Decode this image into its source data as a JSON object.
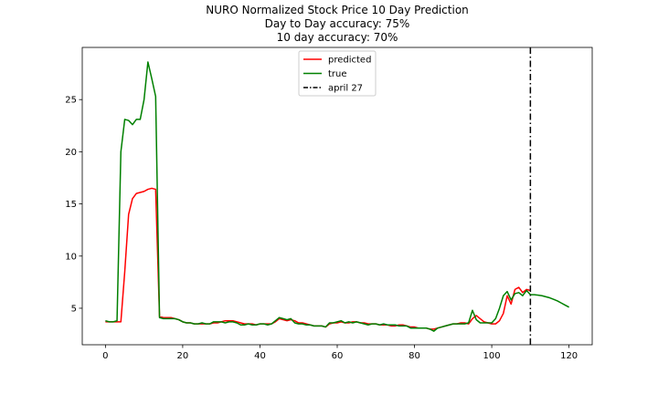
{
  "chart_data": {
    "type": "line",
    "title": "NURO Normalized Stock Price 10 Day Prediction",
    "subtitle": [
      "Day to Day accuracy: 75%",
      "10 day accuracy: 70%"
    ],
    "xlabel": "",
    "ylabel": "",
    "xlim": [
      -6,
      126
    ],
    "ylim": [
      1.5,
      30.0
    ],
    "xticks": [
      0,
      20,
      40,
      60,
      80,
      100,
      120
    ],
    "yticks": [
      5,
      10,
      15,
      20,
      25
    ],
    "grid": false,
    "legend": {
      "placement": "top-center"
    },
    "vline": {
      "x": 110,
      "label": "april 27",
      "color": "#000000",
      "style": "dash-dot"
    },
    "series": [
      {
        "name": "predicted",
        "color": "#ff0000",
        "x": [
          0,
          1,
          2,
          3,
          4,
          5,
          6,
          7,
          8,
          9,
          10,
          11,
          12,
          13,
          14,
          15,
          16,
          17,
          18,
          19,
          20,
          21,
          22,
          23,
          24,
          25,
          26,
          27,
          28,
          29,
          30,
          31,
          32,
          33,
          34,
          35,
          36,
          37,
          38,
          39,
          40,
          41,
          42,
          43,
          44,
          45,
          46,
          47,
          48,
          49,
          50,
          51,
          52,
          53,
          54,
          55,
          56,
          57,
          58,
          59,
          60,
          61,
          62,
          63,
          64,
          65,
          66,
          67,
          68,
          69,
          70,
          71,
          72,
          73,
          74,
          75,
          76,
          77,
          78,
          79,
          80,
          81,
          82,
          83,
          84,
          85,
          86,
          87,
          88,
          89,
          90,
          91,
          92,
          93,
          94,
          95,
          96,
          97,
          98,
          99,
          100,
          101,
          102,
          103,
          104,
          105,
          106,
          107,
          108,
          109,
          110
        ],
        "values": [
          3.7,
          3.7,
          3.7,
          3.7,
          3.7,
          8.5,
          14.0,
          15.5,
          16.0,
          16.1,
          16.2,
          16.4,
          16.5,
          16.4,
          4.2,
          4.1,
          4.1,
          4.1,
          4.0,
          3.9,
          3.7,
          3.6,
          3.6,
          3.5,
          3.5,
          3.5,
          3.5,
          3.5,
          3.6,
          3.6,
          3.7,
          3.8,
          3.8,
          3.8,
          3.7,
          3.6,
          3.5,
          3.5,
          3.5,
          3.4,
          3.5,
          3.5,
          3.5,
          3.5,
          3.7,
          4.0,
          3.9,
          3.8,
          3.9,
          3.8,
          3.6,
          3.6,
          3.5,
          3.4,
          3.3,
          3.3,
          3.3,
          3.2,
          3.5,
          3.6,
          3.6,
          3.7,
          3.6,
          3.6,
          3.7,
          3.7,
          3.6,
          3.6,
          3.5,
          3.5,
          3.5,
          3.4,
          3.4,
          3.4,
          3.3,
          3.3,
          3.4,
          3.4,
          3.3,
          3.2,
          3.2,
          3.1,
          3.1,
          3.1,
          3.0,
          3.0,
          3.1,
          3.2,
          3.3,
          3.4,
          3.5,
          3.5,
          3.6,
          3.6,
          3.5,
          4.0,
          4.3,
          4.0,
          3.7,
          3.6,
          3.5,
          3.5,
          3.8,
          4.5,
          6.2,
          5.4,
          6.8,
          7.0,
          6.5,
          6.8,
          6.7
        ]
      },
      {
        "name": "true",
        "color": "#008000",
        "x": [
          0,
          1,
          2,
          3,
          4,
          5,
          6,
          7,
          8,
          9,
          10,
          11,
          12,
          13,
          14,
          15,
          16,
          17,
          18,
          19,
          20,
          21,
          22,
          23,
          24,
          25,
          26,
          27,
          28,
          29,
          30,
          31,
          32,
          33,
          34,
          35,
          36,
          37,
          38,
          39,
          40,
          41,
          42,
          43,
          44,
          45,
          46,
          47,
          48,
          49,
          50,
          51,
          52,
          53,
          54,
          55,
          56,
          57,
          58,
          59,
          60,
          61,
          62,
          63,
          64,
          65,
          66,
          67,
          68,
          69,
          70,
          71,
          72,
          73,
          74,
          75,
          76,
          77,
          78,
          79,
          80,
          81,
          82,
          83,
          84,
          85,
          86,
          87,
          88,
          89,
          90,
          91,
          92,
          93,
          94,
          95,
          96,
          97,
          98,
          99,
          100,
          101,
          102,
          103,
          104,
          105,
          106,
          107,
          108,
          109,
          110,
          111,
          112,
          113,
          114,
          115,
          116,
          117,
          118,
          119,
          120
        ],
        "values": [
          3.8,
          3.7,
          3.7,
          3.8,
          20.0,
          23.1,
          23.0,
          22.6,
          23.1,
          23.1,
          25.0,
          28.6,
          27.0,
          25.3,
          4.1,
          4.0,
          4.0,
          4.0,
          4.0,
          3.9,
          3.7,
          3.6,
          3.6,
          3.5,
          3.5,
          3.6,
          3.5,
          3.5,
          3.7,
          3.7,
          3.7,
          3.6,
          3.7,
          3.7,
          3.6,
          3.4,
          3.4,
          3.5,
          3.4,
          3.4,
          3.5,
          3.5,
          3.4,
          3.5,
          3.8,
          4.1,
          4.0,
          3.9,
          4.0,
          3.6,
          3.5,
          3.5,
          3.4,
          3.4,
          3.3,
          3.3,
          3.3,
          3.2,
          3.6,
          3.6,
          3.7,
          3.8,
          3.6,
          3.7,
          3.6,
          3.7,
          3.6,
          3.5,
          3.4,
          3.5,
          3.5,
          3.4,
          3.5,
          3.4,
          3.4,
          3.4,
          3.3,
          3.3,
          3.3,
          3.1,
          3.1,
          3.1,
          3.1,
          3.1,
          3.0,
          2.8,
          3.1,
          3.2,
          3.3,
          3.4,
          3.5,
          3.5,
          3.5,
          3.5,
          3.6,
          4.8,
          3.9,
          3.6,
          3.6,
          3.6,
          3.6,
          4.0,
          5.0,
          6.2,
          6.6,
          5.8,
          6.4,
          6.5,
          6.2,
          6.7,
          6.3,
          6.3,
          6.25,
          6.2,
          6.1,
          6.0,
          5.85,
          5.7,
          5.5,
          5.3,
          5.1
        ]
      }
    ]
  }
}
